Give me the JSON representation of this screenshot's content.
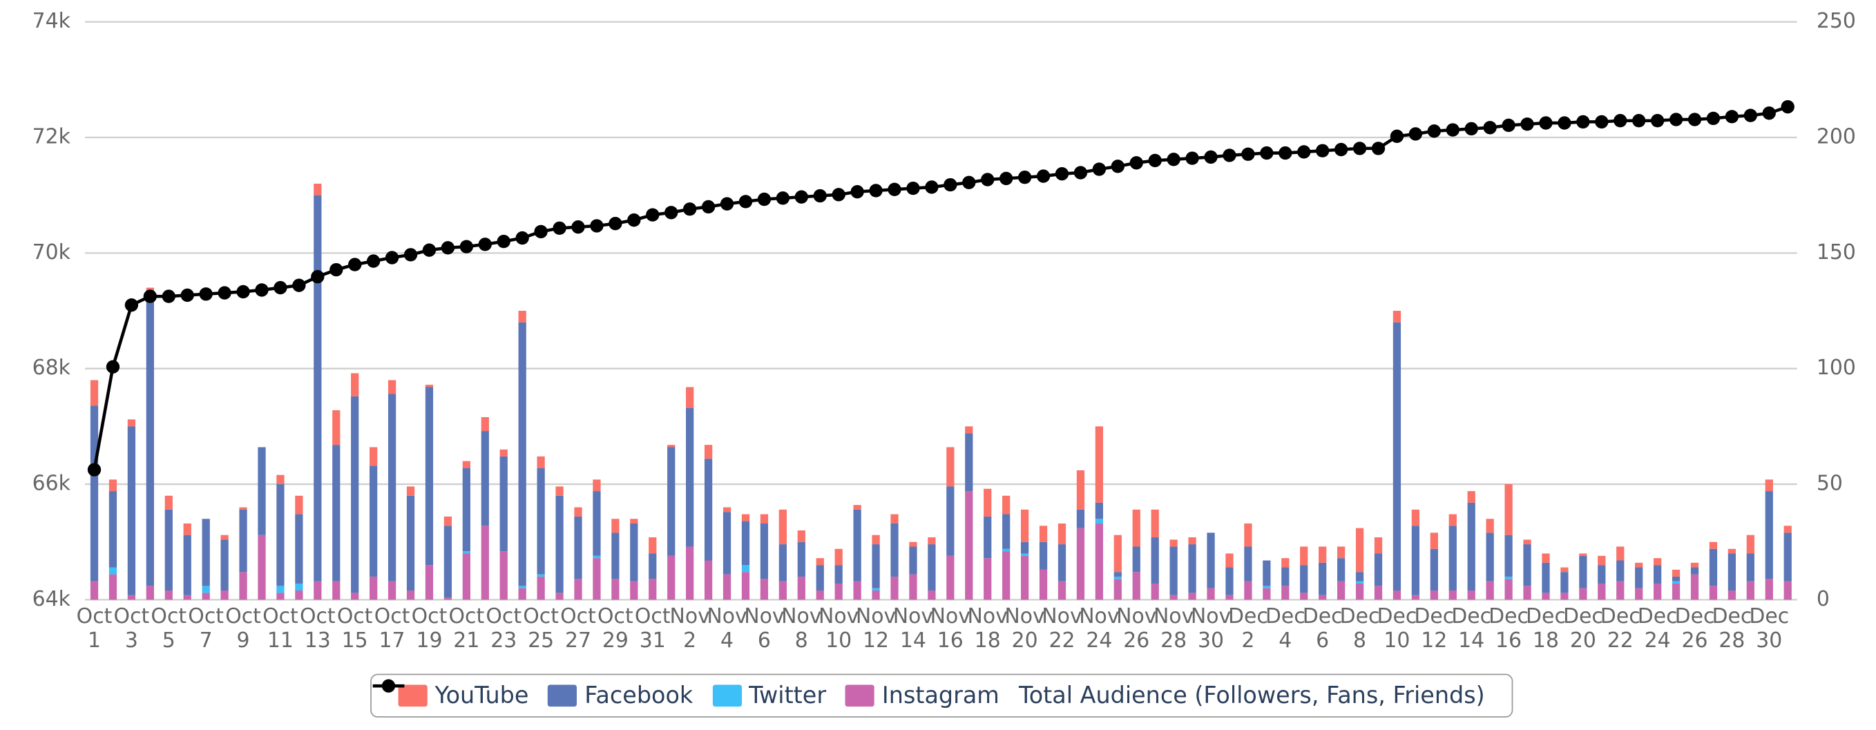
{
  "chart_data": {
    "type": "bar",
    "stacked": true,
    "grid": true,
    "categories": [
      "Oct 1",
      null,
      "Oct 3",
      null,
      "Oct 5",
      null,
      "Oct 7",
      null,
      "Oct 9",
      null,
      "Oct 11",
      null,
      "Oct 13",
      null,
      "Oct 15",
      null,
      "Oct 17",
      null,
      "Oct 19",
      null,
      "Oct 21",
      null,
      "Oct 23",
      null,
      "Oct 25",
      null,
      "Oct 27",
      null,
      "Oct 29",
      null,
      "Oct 31",
      null,
      "Nov 2",
      null,
      "Nov 4",
      null,
      "Nov 6",
      null,
      "Nov 8",
      null,
      "Nov 10",
      null,
      "Nov 12",
      null,
      "Nov 14",
      null,
      "Nov 16",
      null,
      "Nov 18",
      null,
      "Nov 20",
      null,
      "Nov 22",
      null,
      "Nov 24",
      null,
      "Nov 26",
      null,
      "Nov 28",
      null,
      "Nov 30",
      null,
      "Dec 2",
      null,
      "Dec 4",
      null,
      "Dec 6",
      null,
      "Dec 8",
      null,
      "Dec 10",
      null,
      "Dec 12",
      null,
      "Dec 14",
      null,
      "Dec 16",
      null,
      "Dec 18",
      null,
      "Dec 20",
      null,
      "Dec 22",
      null,
      "Dec 24",
      null,
      "Dec 26",
      null,
      "Dec 28",
      null,
      "Dec 30",
      null
    ],
    "ylim": [
      64000,
      74000
    ],
    "yticks": [
      {
        "value": 64000,
        "label": "64k"
      },
      {
        "value": 66000,
        "label": "66k"
      },
      {
        "value": 68000,
        "label": "68k"
      },
      {
        "value": 70000,
        "label": "70k"
      },
      {
        "value": 72000,
        "label": "72k"
      },
      {
        "value": 74000,
        "label": "74k"
      }
    ],
    "y2lim": [
      0,
      250
    ],
    "y2ticks": [
      0,
      50,
      100,
      150,
      200,
      250
    ],
    "series": [
      {
        "name": "YouTube",
        "color": "#fa7268",
        "type": "bar",
        "axis": "y2",
        "values": [
          11,
          5,
          3,
          1,
          6,
          5,
          0,
          2,
          1,
          0,
          4,
          8,
          5,
          15,
          10,
          8,
          6,
          4,
          1,
          4,
          3,
          6,
          3,
          5,
          5,
          4,
          4,
          5,
          6,
          2,
          7,
          1,
          9,
          6,
          2,
          3,
          4,
          15,
          5,
          3,
          7,
          2,
          4,
          4,
          2,
          3,
          17,
          3,
          12,
          8,
          14,
          7,
          9,
          17,
          33,
          16,
          16,
          12,
          3,
          3,
          0,
          6,
          10,
          0,
          4,
          8,
          7,
          5,
          19,
          7,
          5,
          7,
          7,
          5,
          5,
          6,
          22,
          2,
          4,
          2,
          1,
          4,
          6,
          2,
          3,
          3,
          2,
          3,
          2,
          8,
          5,
          3
        ]
      },
      {
        "name": "Facebook",
        "color": "#5a76b7",
        "type": "bar",
        "axis": "y2",
        "values": [
          76,
          33,
          73,
          128,
          35,
          26,
          29,
          22,
          27,
          38,
          44,
          30,
          167,
          59,
          85,
          48,
          81,
          41,
          77,
          31,
          36,
          41,
          41,
          114,
          46,
          42,
          27,
          28,
          20,
          25,
          11,
          47,
          60,
          44,
          27,
          19,
          24,
          16,
          15,
          11,
          8,
          31,
          19,
          23,
          12,
          20,
          30,
          25,
          18,
          15,
          5,
          12,
          16,
          8,
          7,
          2,
          11,
          20,
          21,
          21,
          24,
          12,
          15,
          11,
          8,
          12,
          14,
          10,
          4,
          14,
          116,
          30,
          18,
          28,
          38,
          21,
          18,
          18,
          13,
          9,
          14,
          8,
          9,
          9,
          8,
          2,
          3,
          16,
          16,
          12,
          38,
          21
        ]
      },
      {
        "name": "Twitter",
        "color": "#3dbff7",
        "type": "bar",
        "axis": "y2",
        "values": [
          0,
          3,
          0,
          0,
          0,
          0,
          3,
          0,
          0,
          0,
          3,
          3,
          0,
          0,
          0,
          0,
          0,
          0,
          0,
          0,
          1,
          0,
          0,
          1,
          1,
          0,
          0,
          1,
          0,
          0,
          0,
          0,
          0,
          0,
          0,
          3,
          0,
          0,
          0,
          0,
          0,
          0,
          1,
          0,
          0,
          0,
          0,
          0,
          0,
          1,
          1,
          0,
          0,
          0,
          2,
          1,
          0,
          0,
          0,
          0,
          0,
          0,
          0,
          1,
          0,
          0,
          0,
          0,
          1,
          0,
          0,
          0,
          0,
          0,
          0,
          0,
          1,
          0,
          0,
          0,
          0,
          0,
          0,
          0,
          0,
          1,
          0,
          0,
          0,
          0,
          0,
          0
        ]
      },
      {
        "name": "Instagram",
        "color": "#c966ad",
        "type": "bar",
        "axis": "y2",
        "values": [
          8,
          11,
          2,
          6,
          4,
          2,
          3,
          4,
          12,
          28,
          3,
          4,
          8,
          8,
          3,
          10,
          8,
          4,
          15,
          1,
          20,
          32,
          21,
          5,
          10,
          3,
          9,
          18,
          9,
          8,
          9,
          19,
          23,
          17,
          11,
          12,
          9,
          8,
          10,
          4,
          7,
          8,
          4,
          10,
          11,
          4,
          19,
          47,
          18,
          21,
          19,
          13,
          8,
          31,
          33,
          9,
          12,
          7,
          2,
          3,
          5,
          2,
          8,
          5,
          6,
          3,
          2,
          8,
          7,
          6,
          4,
          2,
          4,
          4,
          4,
          8,
          9,
          6,
          3,
          3,
          5,
          7,
          8,
          5,
          7,
          7,
          11,
          6,
          4,
          8,
          9,
          8
        ]
      },
      {
        "name": "Total Audience (Followers, Fans, Friends)",
        "color": "#000000",
        "type": "line",
        "axis": "y",
        "values": [
          66250,
          68030,
          69100,
          69250,
          69250,
          69270,
          69290,
          69310,
          69330,
          69360,
          69400,
          69440,
          69590,
          69710,
          69800,
          69860,
          69920,
          69970,
          70050,
          70090,
          70110,
          70150,
          70200,
          70260,
          70370,
          70430,
          70450,
          70470,
          70510,
          70570,
          70660,
          70700,
          70760,
          70800,
          70850,
          70890,
          70930,
          70950,
          70970,
          70990,
          71010,
          71060,
          71080,
          71100,
          71120,
          71140,
          71180,
          71220,
          71270,
          71290,
          71310,
          71330,
          71370,
          71390,
          71450,
          71500,
          71560,
          71600,
          71620,
          71640,
          71660,
          71690,
          71710,
          71730,
          71730,
          71750,
          71770,
          71790,
          71810,
          71810,
          72020,
          72060,
          72110,
          72130,
          72150,
          72170,
          72210,
          72230,
          72250,
          72250,
          72270,
          72270,
          72290,
          72290,
          72290,
          72310,
          72310,
          72330,
          72360,
          72380,
          72420,
          72530
        ]
      }
    ]
  }
}
